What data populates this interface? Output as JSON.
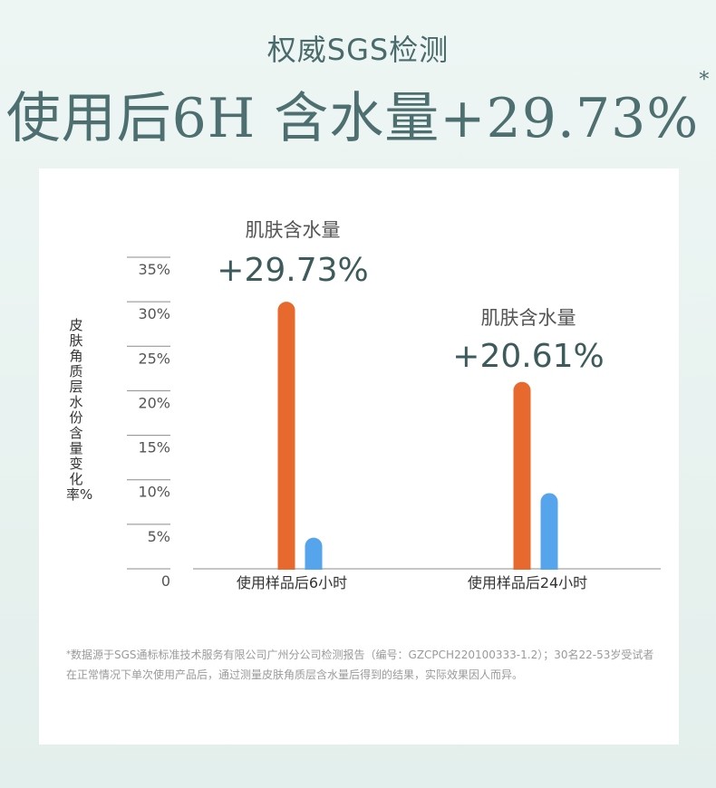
{
  "header": {
    "subtitle": "权威SGS检测",
    "headline": "使用后6H 含水量+29.73%",
    "headline_mark": "*"
  },
  "chart_data": {
    "type": "bar",
    "ylabel": "皮肤角质层水份含量变化率%",
    "ylim": [
      0,
      35
    ],
    "yticks": [
      "0",
      "5%",
      "10%",
      "15%",
      "20%",
      "25%",
      "30%",
      "35%"
    ],
    "categories": [
      "使用样品后6小时",
      "使用样品后24小时"
    ],
    "series": [
      {
        "values": [
          30,
          21
        ],
        "color": "#e8692d"
      },
      {
        "values": [
          3.5,
          8.5
        ],
        "color": "#55a4ec"
      }
    ],
    "annotations": [
      {
        "label": "肌肤含水量",
        "value": "+29.73%"
      },
      {
        "label": "肌肤含水量",
        "value": "+20.61%"
      }
    ],
    "grid": false
  },
  "footnote": {
    "mark": "*",
    "text": "数据源于SGS通标标准技术服务有限公司广州分公司检测报告（编号：GZCPCH220100333-1.2）；30名22-53岁受试者在正常情况下单次使用产品后，通过测量皮肤角质层含水量后得到的结果，实际效果因人而异。"
  },
  "colors": {
    "text_teal": "#4d6f6f",
    "axis": "#999999",
    "value_text": "#3d5b5b"
  }
}
